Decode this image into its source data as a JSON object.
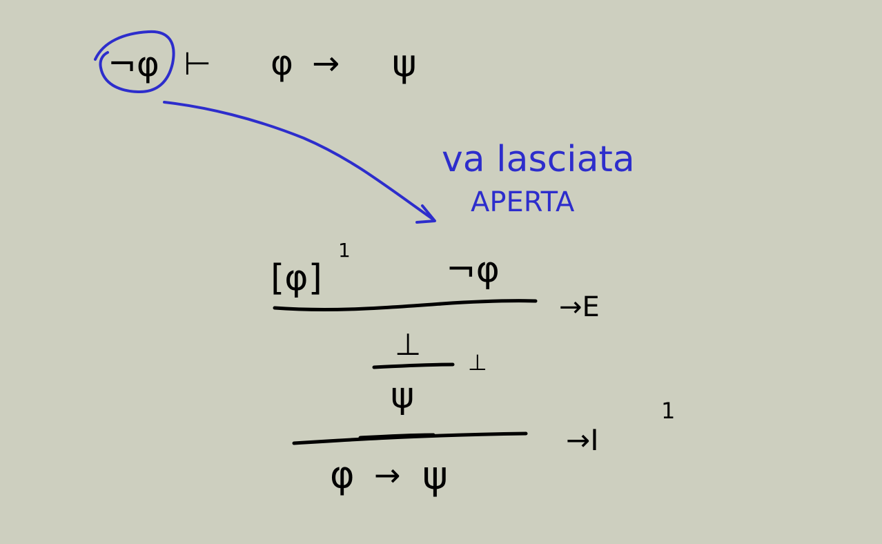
{
  "colors": {
    "background": "#cdcfbf",
    "ink": "#000000",
    "annotation": "#2d2dcc"
  },
  "sequent": {
    "premise": "¬φ",
    "turnstile": "⊢",
    "conclusion_left": "φ",
    "arrow": "→",
    "conclusion_right": "ψ"
  },
  "note": {
    "line1": "va lasciata",
    "line2": "APERTA"
  },
  "proof": {
    "assumption": "[φ]",
    "assumption_label": "1",
    "neg_premise": "¬φ",
    "rule1": "→E",
    "bottom": "⊥",
    "rule2": "⊥",
    "psi": "ψ",
    "rule3": "→I",
    "rule3_label": "1",
    "final_left": "φ",
    "final_arrow": "→",
    "final_right": "ψ"
  }
}
